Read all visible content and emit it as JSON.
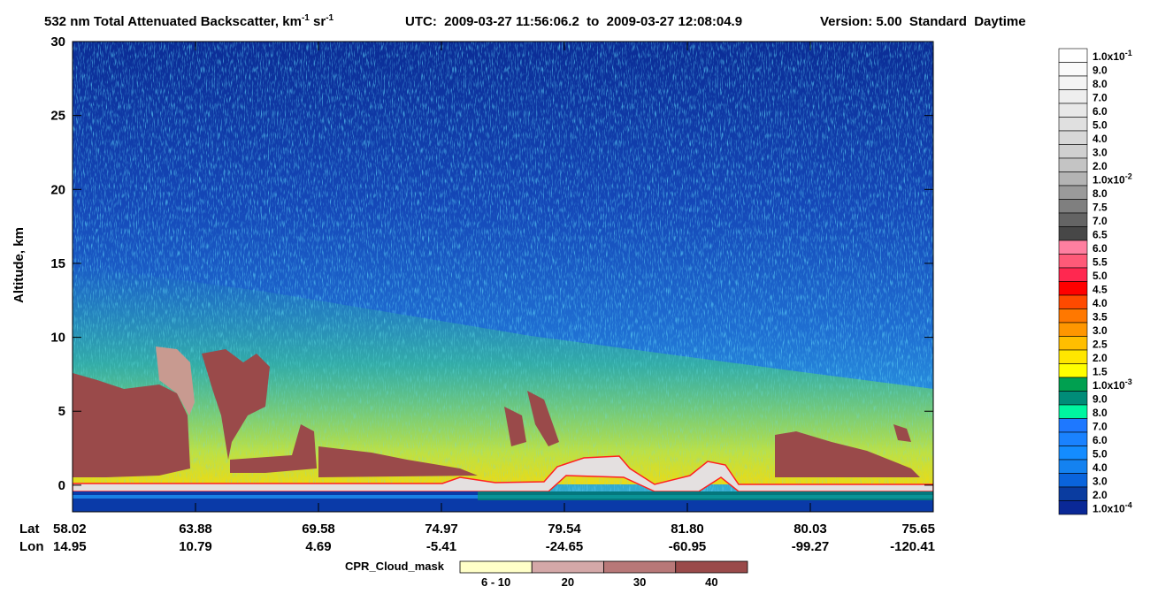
{
  "chart_data": {
    "type": "curtain",
    "title": {
      "main": "532 nm Total Attenuated Backscatter, km",
      "sup1": "-1",
      "mid": " sr",
      "sup2": "-1"
    },
    "time_range": "UTC:  2009-03-27 11:56:06.2  to  2009-03-27 12:08:04.9",
    "version": "Version: 5.00  Standard  Daytime",
    "y_label": "Altitude, km",
    "ylim": [
      -1.8,
      30
    ],
    "yticks": [
      0,
      5,
      10,
      15,
      20,
      25,
      30
    ],
    "x_rows": [
      {
        "name": "Lat",
        "labels": [
          "58.02",
          "63.88",
          "69.58",
          "74.97",
          "79.54",
          "81.80",
          "80.03",
          "75.65"
        ]
      },
      {
        "name": "Lon",
        "labels": [
          "14.95",
          "10.79",
          "4.69",
          "-5.41",
          "-24.65",
          "-60.95",
          "-99.27",
          "-120.41"
        ]
      }
    ],
    "colorbar": {
      "labels": [
        {
          "base": "1.0x10",
          "exp": "-1"
        },
        "9.0",
        "8.0",
        "7.0",
        "6.0",
        "5.0",
        "4.0",
        "3.0",
        "2.0",
        {
          "base": "1.0x10",
          "exp": "-2"
        },
        "8.0",
        "7.5",
        "7.0",
        "6.5",
        "6.0",
        "5.5",
        "5.0",
        "4.5",
        "4.0",
        "3.5",
        "3.0",
        "2.5",
        "2.0",
        "1.5",
        {
          "base": "1.0x10",
          "exp": "-3"
        },
        "9.0",
        "8.0",
        "7.0",
        "6.0",
        "5.0",
        "4.0",
        "3.0",
        "2.0",
        {
          "base": "1.0x10",
          "exp": "-4"
        }
      ],
      "colors": [
        "#ffffff",
        "#fafafa",
        "#f4f4f4",
        "#eeeeee",
        "#e8e8e8",
        "#e0e0e0",
        "#d8d8d8",
        "#d0d0d0",
        "#c4c4c4",
        "#b4b4b4",
        "#9a9a9a",
        "#7f7f7f",
        "#646464",
        "#474747",
        "#ff7fa0",
        "#ff5a78",
        "#ff2850",
        "#ff0000",
        "#ff4a00",
        "#ff7800",
        "#ff9600",
        "#ffbe00",
        "#ffe600",
        "#ffff00",
        "#00a050",
        "#008c78",
        "#00f5a0",
        "#1e78ff",
        "#1a82ff",
        "#148cff",
        "#1482f0",
        "#0a64dc",
        "#0a3ca0",
        "#0a2896"
      ]
    },
    "cloud_mask": {
      "title": "CPR_Cloud_mask",
      "labels": [
        "6 - 10",
        "20",
        "30",
        "40"
      ],
      "colors": [
        "#ffffc8",
        "#d4a8a8",
        "#b87878",
        "#9a4a4a"
      ]
    }
  }
}
